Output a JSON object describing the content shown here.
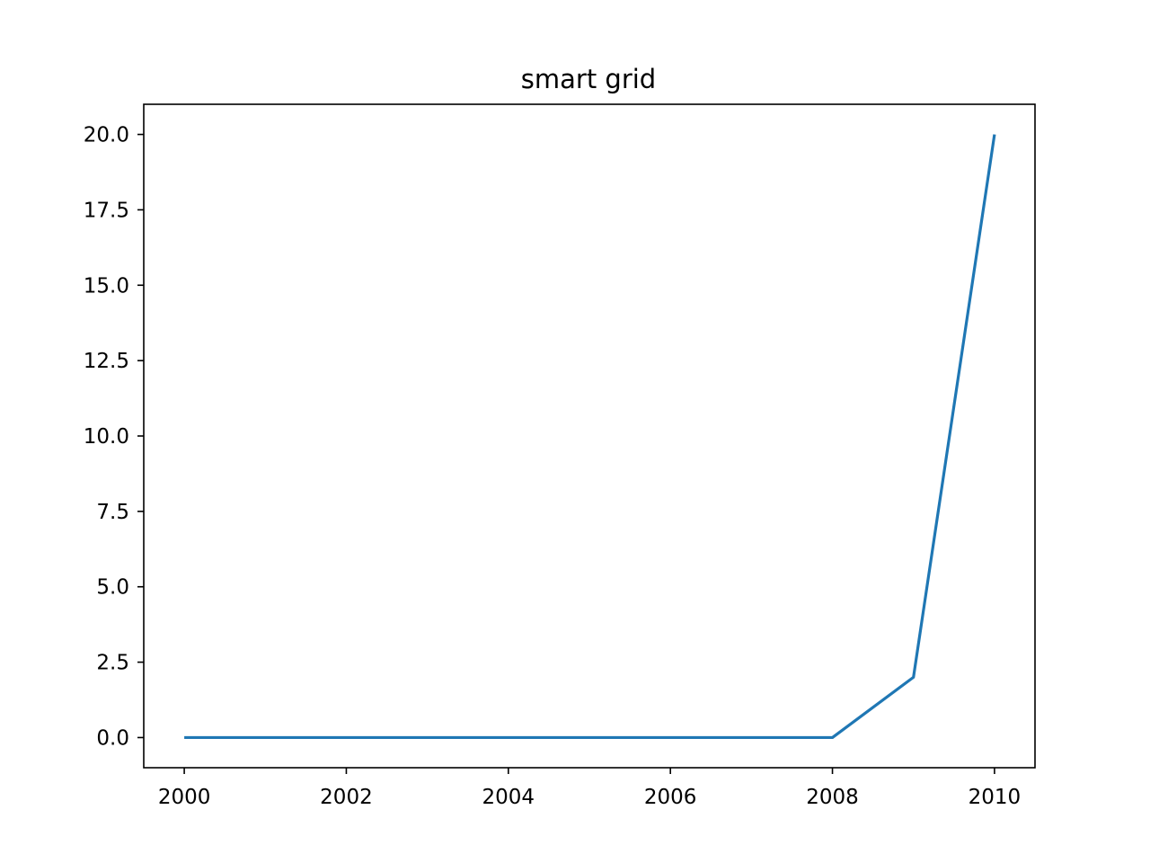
{
  "chart_data": {
    "type": "line",
    "title": "smart grid",
    "xlabel": "",
    "ylabel": "",
    "xlim": [
      1999.5,
      2010.5
    ],
    "ylim": [
      -1,
      21
    ],
    "xticks": [
      2000,
      2002,
      2004,
      2006,
      2008,
      2010
    ],
    "xtick_labels": [
      "2000",
      "2002",
      "2004",
      "2006",
      "2008",
      "2010"
    ],
    "yticks": [
      0,
      2.5,
      5,
      7.5,
      10,
      12.5,
      15,
      17.5,
      20
    ],
    "ytick_labels": [
      "0.0",
      "2.5",
      "5.0",
      "7.5",
      "10.0",
      "12.5",
      "15.0",
      "17.5",
      "20.0"
    ],
    "grid": false,
    "legend": "none",
    "series": [
      {
        "color": "#1f77b4",
        "x": [
          2000,
          2001,
          2002,
          2003,
          2004,
          2005,
          2006,
          2007,
          2008,
          2009,
          2010
        ],
        "y": [
          0,
          0,
          0,
          0,
          0,
          0,
          0,
          0,
          0,
          2,
          20
        ]
      }
    ]
  }
}
